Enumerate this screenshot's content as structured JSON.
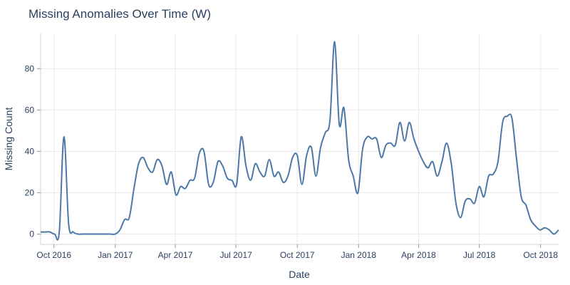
{
  "chart_data": {
    "type": "line",
    "title": "Missing Anomalies Over Time (W)",
    "xlabel": "Date",
    "ylabel": "Missing Count",
    "x_range": [
      "2016-09-11",
      "2018-10-28"
    ],
    "ylim": [
      -5,
      97
    ],
    "grid": true,
    "legend": "none",
    "x_ticks": [
      {
        "date": "2016-10-01",
        "label": "Oct 2016"
      },
      {
        "date": "2017-01-01",
        "label": "Jan 2017"
      },
      {
        "date": "2017-04-01",
        "label": "Apr 2017"
      },
      {
        "date": "2017-07-01",
        "label": "Jul 2017"
      },
      {
        "date": "2017-10-01",
        "label": "Oct 2017"
      },
      {
        "date": "2018-01-01",
        "label": "Jan 2018"
      },
      {
        "date": "2018-04-01",
        "label": "Apr 2018"
      },
      {
        "date": "2018-07-01",
        "label": "Jul 2018"
      },
      {
        "date": "2018-10-01",
        "label": "Oct 2018"
      }
    ],
    "y_ticks": [
      0,
      20,
      40,
      60,
      80
    ],
    "series": [
      {
        "color": "#4c78a8",
        "x": [
          "2016-09-11",
          "2016-09-18",
          "2016-09-25",
          "2016-10-02",
          "2016-10-09",
          "2016-10-16",
          "2016-10-23",
          "2016-10-30",
          "2016-11-06",
          "2016-11-13",
          "2016-11-20",
          "2016-11-27",
          "2016-12-04",
          "2016-12-11",
          "2016-12-18",
          "2016-12-25",
          "2017-01-01",
          "2017-01-08",
          "2017-01-15",
          "2017-01-22",
          "2017-01-29",
          "2017-02-05",
          "2017-02-12",
          "2017-02-19",
          "2017-02-26",
          "2017-03-05",
          "2017-03-12",
          "2017-03-19",
          "2017-03-26",
          "2017-04-02",
          "2017-04-09",
          "2017-04-16",
          "2017-04-23",
          "2017-04-30",
          "2017-05-07",
          "2017-05-14",
          "2017-05-21",
          "2017-05-28",
          "2017-06-04",
          "2017-06-11",
          "2017-06-18",
          "2017-06-25",
          "2017-07-02",
          "2017-07-09",
          "2017-07-16",
          "2017-07-23",
          "2017-07-30",
          "2017-08-06",
          "2017-08-13",
          "2017-08-20",
          "2017-08-27",
          "2017-09-03",
          "2017-09-10",
          "2017-09-17",
          "2017-09-24",
          "2017-10-01",
          "2017-10-08",
          "2017-10-15",
          "2017-10-22",
          "2017-10-29",
          "2017-11-05",
          "2017-11-12",
          "2017-11-19",
          "2017-11-26",
          "2017-12-03",
          "2017-12-10",
          "2017-12-17",
          "2017-12-24",
          "2017-12-31",
          "2018-01-07",
          "2018-01-14",
          "2018-01-21",
          "2018-01-28",
          "2018-02-04",
          "2018-02-11",
          "2018-02-18",
          "2018-02-25",
          "2018-03-04",
          "2018-03-11",
          "2018-03-18",
          "2018-03-25",
          "2018-04-01",
          "2018-04-08",
          "2018-04-15",
          "2018-04-22",
          "2018-04-29",
          "2018-05-06",
          "2018-05-13",
          "2018-05-20",
          "2018-05-27",
          "2018-06-03",
          "2018-06-10",
          "2018-06-17",
          "2018-06-24",
          "2018-07-01",
          "2018-07-08",
          "2018-07-15",
          "2018-07-22",
          "2018-07-29",
          "2018-08-05",
          "2018-08-12",
          "2018-08-19",
          "2018-08-26",
          "2018-09-02",
          "2018-09-09",
          "2018-09-16",
          "2018-09-23",
          "2018-09-30",
          "2018-10-07",
          "2018-10-14",
          "2018-10-21",
          "2018-10-28"
        ],
        "y": [
          1,
          1,
          1,
          0,
          1,
          47,
          5,
          1,
          0,
          0,
          0,
          0,
          0,
          0,
          0,
          0,
          0,
          2,
          7,
          8,
          22,
          34,
          37,
          32,
          30,
          36,
          33,
          24,
          30,
          19,
          23,
          22,
          26,
          27,
          39,
          40,
          24,
          25,
          35,
          33,
          27,
          26,
          24,
          47,
          33,
          26,
          34,
          30,
          28,
          36,
          28,
          30,
          25,
          28,
          37,
          38,
          24,
          38,
          42,
          28,
          42,
          49,
          55,
          93,
          53,
          61,
          36,
          28,
          20,
          41,
          47,
          46,
          46,
          37,
          43,
          44,
          43,
          54,
          45,
          54,
          46,
          40,
          35,
          32,
          35,
          28,
          35,
          44,
          34,
          15,
          8,
          16,
          17,
          15,
          23,
          18,
          28,
          29,
          35,
          54,
          57,
          56,
          36,
          18,
          14,
          7,
          4,
          2,
          3,
          2,
          0,
          2
        ]
      }
    ]
  }
}
